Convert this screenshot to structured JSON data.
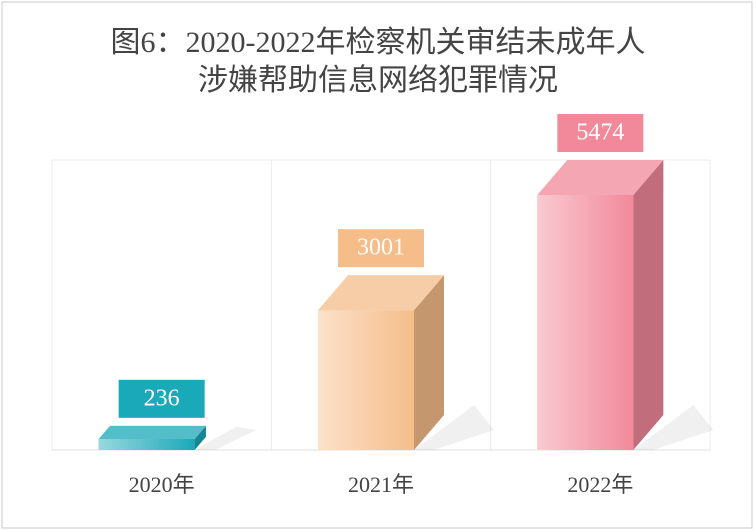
{
  "chart_data": {
    "type": "bar3d",
    "title": [
      "图6：2020-2022年检察机关审结未成年人",
      "涉嫌帮助信息网络犯罪情况"
    ],
    "categories": [
      "2020年",
      "2021年",
      "2022年"
    ],
    "values": [
      236,
      3001,
      5474
    ],
    "colors": [
      "#1aa9b8",
      "#f5bd8a",
      "#f2899a"
    ],
    "grid": true
  }
}
